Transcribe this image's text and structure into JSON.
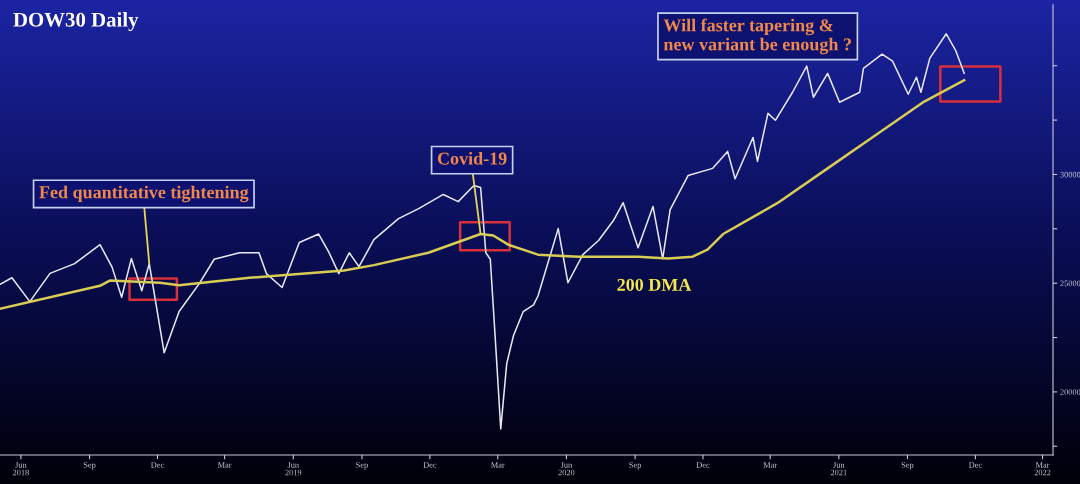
{
  "chart_data": {
    "type": "line",
    "title": "DOW30 Daily",
    "series": [
      {
        "color": "#e8e8f2",
        "x": [
          "2018-05-04",
          "2018-05-20",
          "2018-06-13",
          "2018-07-10",
          "2018-08-12",
          "2018-09-15",
          "2018-10-01",
          "2018-10-14",
          "2018-10-27",
          "2018-11-10",
          "2018-11-20",
          "2018-12-10",
          "2018-12-30",
          "2019-01-26",
          "2019-02-15",
          "2019-03-21",
          "2019-04-16",
          "2019-04-26",
          "2019-05-17",
          "2019-06-09",
          "2019-07-05",
          "2019-07-19",
          "2019-08-01",
          "2019-08-15",
          "2019-08-28",
          "2019-09-17",
          "2019-10-20",
          "2019-11-16",
          "2019-12-19",
          "2020-01-08",
          "2020-01-29",
          "2020-02-07",
          "2020-02-14",
          "2020-02-20",
          "2020-02-27",
          "2020-03-05",
          "2020-03-13",
          "2020-03-22",
          "2020-04-04",
          "2020-04-18",
          "2020-04-24",
          "2020-05-21",
          "2020-06-03",
          "2020-06-23",
          "2020-07-14",
          "2020-08-03",
          "2020-08-16",
          "2020-09-05",
          "2020-09-25",
          "2020-10-08",
          "2020-10-18",
          "2020-11-11",
          "2020-12-14",
          "2021-01-03",
          "2021-01-13",
          "2021-02-06",
          "2021-02-12",
          "2021-02-26",
          "2021-03-08",
          "2021-03-31",
          "2021-04-19",
          "2021-04-28",
          "2021-05-17",
          "2021-06-02",
          "2021-06-29",
          "2021-07-04",
          "2021-07-29",
          "2021-08-12",
          "2021-09-02",
          "2021-09-13",
          "2021-09-19",
          "2021-10-01",
          "2021-10-23",
          "2021-11-05",
          "2021-11-16"
        ],
        "values": [
          24950,
          25250,
          24150,
          25450,
          25900,
          26770,
          25750,
          24350,
          26130,
          24650,
          25900,
          21800,
          23700,
          24980,
          26100,
          26400,
          26400,
          25440,
          24800,
          26870,
          27260,
          26400,
          25440,
          26400,
          25760,
          27000,
          27970,
          28430,
          29080,
          28750,
          29490,
          29400,
          26400,
          26100,
          22260,
          18300,
          21300,
          22580,
          23690,
          24000,
          24420,
          27510,
          25020,
          26310,
          26960,
          27880,
          28700,
          26630,
          28530,
          26130,
          28380,
          29950,
          30280,
          31060,
          29800,
          31700,
          30600,
          32810,
          32490,
          33780,
          34980,
          33550,
          34650,
          33320,
          33780,
          34880,
          35530,
          35210,
          33690,
          34470,
          33780,
          35350,
          36470,
          35670,
          34650
        ]
      },
      {
        "name": "200 DMA",
        "color": "#d9cc55",
        "x": [
          "2018-05-04",
          "2018-09-15",
          "2018-09-28",
          "2018-12-04",
          "2018-12-30",
          "2019-04-03",
          "2019-05-13",
          "2019-08-08",
          "2019-09-17",
          "2019-11-29",
          "2020-02-07",
          "2020-02-24",
          "2020-03-15",
          "2020-04-24",
          "2020-06-17",
          "2020-09-05",
          "2020-10-15",
          "2020-11-17",
          "2020-12-07",
          "2020-12-28",
          "2021-03-11",
          "2021-05-17",
          "2021-07-23",
          "2021-09-21",
          "2021-11-16"
        ],
        "values": [
          23820,
          24880,
          25120,
          25020,
          24900,
          25250,
          25350,
          25580,
          25830,
          26400,
          27260,
          27190,
          26770,
          26310,
          26220,
          26220,
          26130,
          26220,
          26540,
          27260,
          28690,
          30280,
          31870,
          33300,
          34330
        ]
      }
    ],
    "annotations": [
      {
        "text": "Fed quantitative tightening",
        "x": "2018-11-20",
        "y": 25900
      },
      {
        "text": "Covid-19",
        "x": "2020-02-07",
        "y": 27260
      },
      "Will faster tapering &\nnew variant be enough ?"
    ],
    "xlim": [
      "2018-05-04",
      "2022-03-15"
    ],
    "xticks": [
      {
        "value": "2018-06-01",
        "label": "Jun\n2018"
      },
      {
        "value": "2018-09-01",
        "label": "Sep"
      },
      {
        "value": "2018-12-01",
        "label": "Dec"
      },
      {
        "value": "2019-03-01",
        "label": "Mar"
      },
      {
        "value": "2019-06-01",
        "label": "Jun\n2019"
      },
      {
        "value": "2019-09-01",
        "label": "Sep"
      },
      {
        "value": "2019-12-01",
        "label": "Dec"
      },
      {
        "value": "2020-03-01",
        "label": "Mar"
      },
      {
        "value": "2020-06-01",
        "label": "Jun\n2020"
      },
      {
        "value": "2020-09-01",
        "label": "Sep"
      },
      {
        "value": "2020-12-01",
        "label": "Dec"
      },
      {
        "value": "2021-03-01",
        "label": "Mar"
      },
      {
        "value": "2021-06-01",
        "label": "Jun\n2021"
      },
      {
        "value": "2021-09-01",
        "label": "Sep"
      },
      {
        "value": "2021-12-01",
        "label": "Dec"
      },
      {
        "value": "2022-03-01",
        "label": "Mar\n2022"
      }
    ],
    "ylim": [
      17100,
      37800
    ],
    "yticks": [
      {
        "value": 17500,
        "label": null
      },
      20000,
      {
        "value": 22500,
        "label": null
      },
      25000,
      {
        "value": 27500,
        "label": null
      },
      30000,
      {
        "value": 32500,
        "label": null
      },
      {
        "value": 35000,
        "label": null
      }
    ],
    "grid": false,
    "legend": false
  }
}
